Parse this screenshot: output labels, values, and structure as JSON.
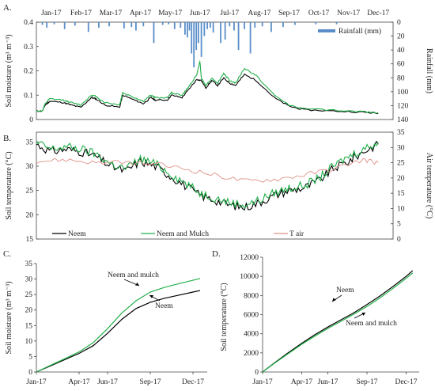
{
  "chart_data": [
    {
      "panel": "A.",
      "type": "line",
      "x_ticks": [
        "Jan-17",
        "Feb-17",
        "Mar-17",
        "Apr-17",
        "May-17",
        "Jun-17",
        "Jul-17",
        "Aug-17",
        "Sep-17",
        "Oct-17",
        "Nov-17",
        "Dec-17"
      ],
      "ylabel": "Soil moisture (m³ m⁻³)",
      "ylim": [
        0,
        0.4
      ],
      "y_ticks": [
        "0",
        "0.1",
        "0.2",
        "0.3",
        "0.4"
      ],
      "y2label": "Rainfall (mm)",
      "y2lim": [
        0,
        140
      ],
      "y2_ticks": [
        "0",
        "20",
        "40",
        "60",
        "80",
        "100",
        "120",
        "140"
      ],
      "legend": [
        "Rainfall (mm)"
      ],
      "legend_position": "top-right",
      "colors": {
        "neem": "#000000",
        "mulch": "#22b04a",
        "rain": "#5b8ec9"
      },
      "series": [
        {
          "key": "neem",
          "month": [
            0,
            0.2,
            0.3,
            0.45,
            0.9,
            1.15,
            1.5,
            1.85,
            2.0,
            2.3,
            2.8,
            2.9,
            3.3,
            3.6,
            3.85,
            4.0,
            4.4,
            4.55,
            4.9,
            5.1,
            5.4,
            5.55,
            5.7,
            5.9,
            6.1,
            6.3,
            6.5,
            6.7,
            7.0,
            7.4,
            8.0,
            8.5,
            9.0,
            10.0,
            11.0,
            11.5
          ],
          "values": [
            0.035,
            0.035,
            0.06,
            0.075,
            0.07,
            0.06,
            0.05,
            0.09,
            0.085,
            0.06,
            0.05,
            0.1,
            0.08,
            0.065,
            0.09,
            0.08,
            0.08,
            0.1,
            0.09,
            0.12,
            0.165,
            0.16,
            0.13,
            0.16,
            0.14,
            0.17,
            0.15,
            0.14,
            0.185,
            0.16,
            0.09,
            0.055,
            0.04,
            0.035,
            0.03,
            0.025
          ]
        },
        {
          "key": "mulch",
          "month": [
            0,
            0.2,
            0.3,
            0.45,
            0.9,
            1.15,
            1.5,
            1.85,
            2.0,
            2.3,
            2.8,
            2.9,
            3.3,
            3.6,
            3.85,
            4.0,
            4.4,
            4.55,
            4.9,
            5.1,
            5.4,
            5.5,
            5.55,
            5.7,
            5.9,
            6.1,
            6.3,
            6.5,
            6.7,
            7.0,
            7.4,
            8.0,
            8.5,
            9.0,
            10.0,
            11.0,
            11.5
          ],
          "values": [
            0.035,
            0.035,
            0.065,
            0.085,
            0.08,
            0.07,
            0.06,
            0.1,
            0.095,
            0.07,
            0.06,
            0.11,
            0.09,
            0.075,
            0.1,
            0.09,
            0.09,
            0.11,
            0.1,
            0.13,
            0.185,
            0.24,
            0.17,
            0.14,
            0.17,
            0.15,
            0.19,
            0.16,
            0.15,
            0.21,
            0.18,
            0.1,
            0.06,
            0.045,
            0.038,
            0.032,
            0.028
          ]
        }
      ],
      "rainfall": {
        "month": [
          0.2,
          0.35,
          0.6,
          0.95,
          1.3,
          1.75,
          2.1,
          2.45,
          2.95,
          3.2,
          3.35,
          3.6,
          3.95,
          4.25,
          4.45,
          4.65,
          4.85,
          5.0,
          5.08,
          5.15,
          5.22,
          5.3,
          5.38,
          5.45,
          5.55,
          5.65,
          5.75,
          5.85,
          5.95,
          6.2,
          6.35,
          6.5,
          6.65,
          6.8,
          7.0,
          7.2,
          7.35,
          7.6,
          7.9,
          8.3,
          8.7,
          9.4,
          10.1
        ],
        "values": [
          4,
          8,
          3,
          10,
          5,
          14,
          8,
          6,
          9,
          7,
          12,
          6,
          30,
          4,
          3,
          10,
          8,
          18,
          22,
          12,
          45,
          65,
          40,
          30,
          50,
          20,
          10,
          8,
          15,
          30,
          25,
          6,
          12,
          40,
          10,
          45,
          8,
          6,
          14,
          7,
          4,
          3,
          3
        ]
      }
    },
    {
      "panel": "B.",
      "type": "line",
      "ylabel": "Soil temperature (°C)",
      "ylim": [
        15,
        37
      ],
      "y_ticks": [
        "15",
        "20",
        "25",
        "30",
        "35"
      ],
      "y2label": "Air temperature (°C)",
      "y2lim": [
        0,
        35
      ],
      "y2_ticks": [
        "0",
        "5",
        "10",
        "15",
        "20",
        "25",
        "30",
        "35"
      ],
      "legend": [
        "Neem",
        "Neem and Mulch",
        "T air"
      ],
      "legend_position": "bottom",
      "colors": {
        "neem": "#000000",
        "mulch": "#22b04a",
        "tair": "#e0928a"
      },
      "series": [
        {
          "key": "neem",
          "month": [
            0,
            0.5,
            1.0,
            1.5,
            2.0,
            2.5,
            3.0,
            3.5,
            4.0,
            4.5,
            5.0,
            5.5,
            6.0,
            6.5,
            7.0,
            7.5,
            8.0,
            8.5,
            9.0,
            9.5,
            10.0,
            10.5,
            11.0,
            11.5
          ],
          "values": [
            34.5,
            33,
            33.5,
            33,
            32,
            30,
            29,
            31,
            30,
            28,
            26,
            24,
            23,
            22,
            21.5,
            22.5,
            24,
            25,
            25.5,
            27,
            29.5,
            31,
            33,
            34.5
          ]
        },
        {
          "key": "mulch",
          "month": [
            0,
            0.5,
            1.0,
            1.5,
            2.0,
            2.5,
            3.0,
            3.5,
            4.0,
            4.5,
            5.0,
            5.5,
            6.0,
            6.5,
            7.0,
            7.5,
            8.0,
            8.5,
            9.0,
            9.5,
            10.0,
            10.5,
            11.0,
            11.5
          ],
          "values": [
            34.8,
            33.5,
            34,
            33.5,
            32.5,
            30.5,
            29.5,
            31.5,
            30.5,
            28.5,
            26.5,
            24.5,
            23.5,
            22.5,
            22,
            23,
            24.5,
            25.5,
            26,
            27.5,
            30,
            32,
            33.5,
            35
          ]
        },
        {
          "key": "tair",
          "month": [
            0,
            1,
            2,
            3,
            4,
            5,
            6,
            7,
            8,
            9,
            10,
            11,
            11.5
          ],
          "values": [
            25.5,
            26,
            25,
            25,
            24.5,
            23,
            21,
            19,
            19.5,
            21,
            23,
            26,
            25
          ]
        }
      ]
    },
    {
      "panel": "C.",
      "type": "line",
      "x_ticks": [
        "Jan-17",
        "Apr-17",
        "Jun-17",
        "Sep-17",
        "Dec-17"
      ],
      "ylabel": "Soil moisture (m³ m⁻³)",
      "ylim": [
        0,
        35
      ],
      "y_ticks": [
        "0",
        "5",
        "10",
        "15",
        "20",
        "25",
        "30",
        "35"
      ],
      "annotations": [
        "Neem and mulch",
        "Neem"
      ],
      "colors": {
        "neem": "#000000",
        "mulch": "#22b04a"
      },
      "series": [
        {
          "key": "neem",
          "month": [
            0,
            1,
            2,
            3,
            4,
            5,
            6,
            7,
            8,
            9,
            10,
            11,
            11.5
          ],
          "values": [
            0,
            2,
            4,
            6,
            8.5,
            12.5,
            17,
            20.5,
            22.5,
            23.8,
            24.8,
            25.8,
            26.3
          ]
        },
        {
          "key": "mulch",
          "month": [
            0,
            1,
            2,
            3,
            4,
            5,
            6,
            7,
            8,
            9,
            10,
            11,
            11.5
          ],
          "values": [
            0,
            2.2,
            4.3,
            6.5,
            9.5,
            14,
            19,
            23,
            25.8,
            27.3,
            28.5,
            29.6,
            30.2
          ]
        }
      ]
    },
    {
      "panel": "D.",
      "type": "line",
      "x_ticks": [
        "Jan-17",
        "Apr-17",
        "Jun-17",
        "Sep-17",
        "Dec-17"
      ],
      "ylabel": "Soil temperature (°C)",
      "ylim": [
        0,
        12000
      ],
      "y_ticks": [
        "0",
        "2000",
        "4000",
        "6000",
        "8000",
        "10000",
        "12000"
      ],
      "annotations": [
        "Neem",
        "Neem and mulch"
      ],
      "colors": {
        "neem": "#000000",
        "mulch": "#22b04a"
      },
      "series": [
        {
          "key": "neem",
          "month": [
            0,
            1,
            2,
            3,
            4,
            5,
            6,
            7,
            8,
            9,
            10,
            11,
            11.5
          ],
          "values": [
            0,
            1050,
            2050,
            3000,
            3900,
            4700,
            5450,
            6200,
            7050,
            7950,
            8950,
            10000,
            10600
          ]
        },
        {
          "key": "mulch",
          "month": [
            0,
            1,
            2,
            3,
            4,
            5,
            6,
            7,
            8,
            9,
            10,
            11,
            11.5
          ],
          "values": [
            0,
            1000,
            1950,
            2900,
            3750,
            4550,
            5300,
            6050,
            6850,
            7750,
            8750,
            9800,
            10350
          ]
        }
      ]
    }
  ]
}
